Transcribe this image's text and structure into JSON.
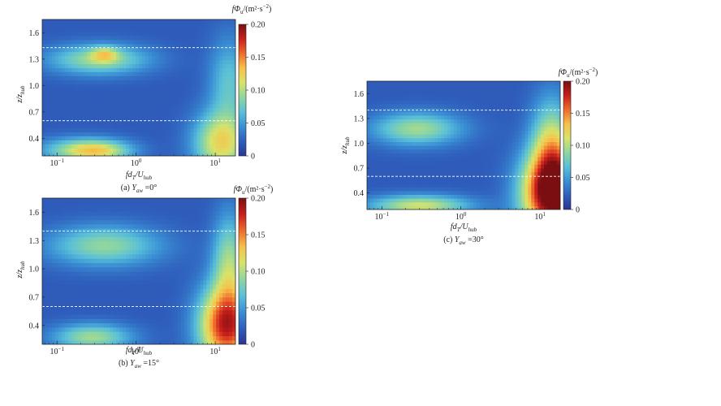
{
  "colors": {
    "colormap": [
      "#2a3594",
      "#2f5fbd",
      "#3a8fd4",
      "#5ac0d8",
      "#8ed6a0",
      "#d8e36a",
      "#f6c24a",
      "#ef6b2d",
      "#c81f1c",
      "#7a0f12"
    ],
    "dashed_line": "#ffffff",
    "axis": "#222222"
  },
  "chart_data": [
    {
      "type": "heatmap",
      "panel": "a",
      "caption_prefix": "(a) ",
      "caption_var": "Y",
      "caption_sub": "aw",
      "caption_value": " =0°",
      "xlabel_main": "fd",
      "xlabel_sub1": "T",
      "xlabel_slash": "/U",
      "xlabel_sub2": "hub",
      "ylabel_main": "z/z",
      "ylabel_sub": "hub",
      "x_ticks": [
        "10",
        "10",
        "10"
      ],
      "x_tick_exps": [
        "−1",
        "0",
        "1"
      ],
      "x_scale": "log",
      "x_range": [
        0.065,
        18
      ],
      "y_range": [
        0.2,
        1.75
      ],
      "y_ticks": [
        "0.4",
        "0.7",
        "1.0",
        "1.3",
        "1.6"
      ],
      "dashed_lines_y": [
        0.6,
        1.43
      ],
      "colorbar_label_main": "fΦ",
      "colorbar_label_sub": "u",
      "colorbar_label_units": "/(m²·s",
      "colorbar_label_exp": "−2",
      "colorbar_label_close": ")",
      "colorbar_ticks": [
        "0",
        "0.05",
        "0.10",
        "0.15",
        "0.20"
      ],
      "colorbar_range": [
        0,
        0.2
      ],
      "blobs": [
        {
          "x": 0.34,
          "y": 1.3,
          "amp": 0.075,
          "sx": 0.45,
          "sy": 0.12
        },
        {
          "x": 0.4,
          "y": 1.36,
          "amp": 0.05,
          "sx": 0.12,
          "sy": 0.06
        },
        {
          "x": 0.35,
          "y": 0.26,
          "amp": 0.08,
          "sx": 0.3,
          "sy": 0.09
        },
        {
          "x": 0.16,
          "y": 0.27,
          "amp": 0.05,
          "sx": 0.35,
          "sy": 0.1
        },
        {
          "x": 12,
          "y": 0.35,
          "amp": 0.1,
          "sx": 0.25,
          "sy": 0.25
        },
        {
          "x": 15,
          "y": 1.05,
          "amp": 0.05,
          "sx": 0.18,
          "sy": 0.35
        }
      ],
      "baseline": 0.02
    },
    {
      "type": "heatmap",
      "panel": "b",
      "caption_prefix": "(b) ",
      "caption_var": "Y",
      "caption_sub": "aw",
      "caption_value": " =15°",
      "xlabel_main": "fd",
      "xlabel_sub1": "T",
      "xlabel_slash": "/U",
      "xlabel_sub2": "hub",
      "ylabel_main": "z/z",
      "ylabel_sub": "hub",
      "x_ticks": [
        "10",
        "10",
        "10"
      ],
      "x_tick_exps": [
        "−1",
        "0",
        "1"
      ],
      "x_scale": "log",
      "x_range": [
        0.065,
        18
      ],
      "y_range": [
        0.2,
        1.75
      ],
      "y_ticks": [
        "0.4",
        "0.7",
        "1.0",
        "1.3",
        "1.6"
      ],
      "dashed_lines_y": [
        0.6,
        1.4
      ],
      "colorbar_label_main": "fΦ",
      "colorbar_label_sub": "u",
      "colorbar_label_units": "/(m²·s",
      "colorbar_label_exp": "−2",
      "colorbar_label_close": ")",
      "colorbar_ticks": [
        "0",
        "0.05",
        "0.10",
        "0.15",
        "0.20"
      ],
      "colorbar_range": [
        0,
        0.2
      ],
      "blobs": [
        {
          "x": 0.4,
          "y": 1.25,
          "amp": 0.07,
          "sx": 0.5,
          "sy": 0.15
        },
        {
          "x": 0.28,
          "y": 0.28,
          "amp": 0.075,
          "sx": 0.35,
          "sy": 0.1
        },
        {
          "x": 14,
          "y": 0.4,
          "amp": 0.16,
          "sx": 0.25,
          "sy": 0.3
        },
        {
          "x": 15,
          "y": 1.1,
          "amp": 0.07,
          "sx": 0.15,
          "sy": 0.35
        }
      ],
      "baseline": 0.02
    },
    {
      "type": "heatmap",
      "panel": "c",
      "caption_prefix": "(c) ",
      "caption_var": "Y",
      "caption_sub": "aw",
      "caption_value": " =30°",
      "xlabel_main": "fd",
      "xlabel_sub1": "T",
      "xlabel_slash": "/U",
      "xlabel_sub2": "hub",
      "ylabel_main": "z/z",
      "ylabel_sub": "hub",
      "x_ticks": [
        "10",
        "10",
        "10"
      ],
      "x_tick_exps": [
        "−1",
        "0",
        "1"
      ],
      "x_scale": "log",
      "x_range": [
        0.065,
        18
      ],
      "y_range": [
        0.2,
        1.75
      ],
      "y_ticks": [
        "0.4",
        "0.7",
        "1.0",
        "1.3",
        "1.6"
      ],
      "dashed_lines_y": [
        0.6,
        1.4
      ],
      "colorbar_label_main": "fΦ",
      "colorbar_label_sub": "u",
      "colorbar_label_units": "/(m²·s",
      "colorbar_label_exp": "−2",
      "colorbar_label_close": ")",
      "colorbar_ticks": [
        "0",
        "0.05",
        "0.10",
        "0.15",
        "0.20"
      ],
      "colorbar_range": [
        0,
        0.2
      ],
      "blobs": [
        {
          "x": 0.28,
          "y": 1.18,
          "amp": 0.075,
          "sx": 0.4,
          "sy": 0.14
        },
        {
          "x": 0.3,
          "y": 0.25,
          "amp": 0.09,
          "sx": 0.45,
          "sy": 0.09
        },
        {
          "x": 15,
          "y": 0.4,
          "amp": 0.2,
          "sx": 0.28,
          "sy": 0.35
        },
        {
          "x": 14,
          "y": 1.0,
          "amp": 0.08,
          "sx": 0.18,
          "sy": 0.4
        }
      ],
      "baseline": 0.02
    }
  ]
}
